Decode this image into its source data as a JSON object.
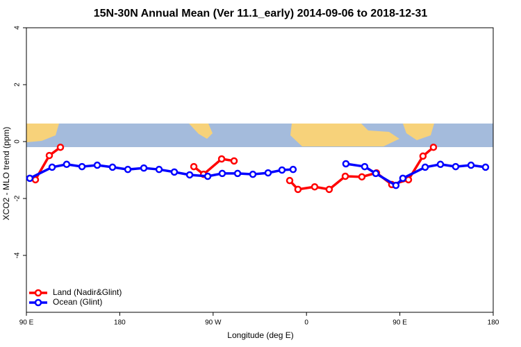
{
  "chart_data": {
    "type": "line",
    "title": "15N-30N Annual Mean (Ver 11.1_early)   2014-09-06 to 2018-12-31",
    "x_label": "Longitude (deg E)",
    "y_label": "XCO2 - MLO trend (ppm)",
    "xlim": [
      90,
      540
    ],
    "xticks": [
      {
        "value": 90,
        "label": "90 E"
      },
      180,
      {
        "value": 270,
        "label": "90 W"
      },
      {
        "value": 360,
        "label": "0"
      },
      {
        "value": 450,
        "label": "90 E"
      },
      {
        "value": 540,
        "label": "180"
      }
    ],
    "ylim": [
      -6,
      4
    ],
    "yticks": [
      4,
      2,
      0,
      -2,
      -4
    ],
    "legend": "bottom-left",
    "series": [
      {
        "name": "Land (Nadir&Glint)",
        "color": "#ff0000",
        "x": [
          98.7,
          112.1,
          122.8,
          null,
          251.4,
          260.8,
          278.2,
          290.2,
          null,
          343.8,
          351.8,
          367.9,
          381.9,
          397.4,
          413.4,
          427.5,
          442.2,
          458.3,
          472.3,
          482.4
        ],
        "values": [
          -1.34,
          -0.49,
          -0.2,
          null,
          -0.88,
          -1.15,
          -0.61,
          -0.68,
          null,
          -1.37,
          -1.68,
          -1.59,
          -1.68,
          -1.22,
          -1.24,
          -1.1,
          -1.51,
          -1.34,
          -0.51,
          -0.2
        ]
      },
      {
        "name": "Ocean (Glint)",
        "color": "#0000ff",
        "x": [
          93.3,
          114.8,
          128.8,
          143.6,
          158.3,
          173.0,
          187.8,
          203.2,
          217.9,
          232.6,
          247.4,
          264.8,
          278.8,
          293.6,
          308.3,
          323.0,
          336.4,
          347.1,
          null,
          398.0,
          416.1,
          426.8,
          446.2,
          452.9,
          474.4,
          489.1,
          503.8,
          518.6,
          532.6
        ],
        "values": [
          -1.29,
          -0.9,
          -0.8,
          -0.88,
          -0.83,
          -0.9,
          -0.98,
          -0.93,
          -0.98,
          -1.07,
          -1.17,
          -1.22,
          -1.12,
          -1.12,
          -1.15,
          -1.1,
          -1.0,
          -0.98,
          null,
          -0.78,
          -0.88,
          -1.12,
          -1.54,
          -1.29,
          -0.9,
          -0.8,
          -0.88,
          -0.83,
          -0.9
        ]
      }
    ]
  }
}
